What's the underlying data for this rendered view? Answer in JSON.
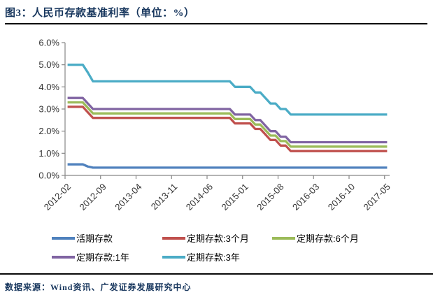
{
  "header": {
    "title": "图3：人民币存款基准利率（单位：%）"
  },
  "footer": {
    "source": "数据来源：Wind资讯、广发证券发展研究中心"
  },
  "chart_data": {
    "type": "line",
    "title": "人民币存款基准利率（单位：%）",
    "xlabel": "",
    "ylabel": "",
    "ylim": [
      0,
      6
    ],
    "grid": false,
    "legend_position": "bottom",
    "axis_color": "#878787",
    "tick_label_color": "#333333",
    "y_ticks": [
      "0.0%",
      "1.0%",
      "2.0%",
      "3.0%",
      "4.0%",
      "5.0%",
      "6.0%"
    ],
    "x_tick_labels": [
      "2012-02",
      "2012-09",
      "2013-04",
      "2013-11",
      "2014-06",
      "2015-01",
      "2015-08",
      "2016-03",
      "2016-10",
      "2017-05"
    ],
    "x_categories": [
      "2012-02",
      "2012-03",
      "2012-04",
      "2012-05",
      "2012-06",
      "2012-07",
      "2012-08",
      "2012-09",
      "2012-10",
      "2012-11",
      "2012-12",
      "2013-01",
      "2013-02",
      "2013-03",
      "2013-04",
      "2013-05",
      "2013-06",
      "2013-07",
      "2013-08",
      "2013-09",
      "2013-10",
      "2013-11",
      "2013-12",
      "2014-01",
      "2014-02",
      "2014-03",
      "2014-04",
      "2014-05",
      "2014-06",
      "2014-07",
      "2014-08",
      "2014-09",
      "2014-10",
      "2014-11",
      "2014-12",
      "2015-01",
      "2015-02",
      "2015-03",
      "2015-04",
      "2015-05",
      "2015-06",
      "2015-07",
      "2015-08",
      "2015-09",
      "2015-10",
      "2015-11",
      "2015-12",
      "2016-01",
      "2016-02",
      "2016-03",
      "2016-04",
      "2016-05",
      "2016-06",
      "2016-07",
      "2016-08",
      "2016-09",
      "2016-10",
      "2016-11",
      "2016-12",
      "2017-01",
      "2017-02",
      "2017-03",
      "2017-04",
      "2017-05"
    ],
    "series": [
      {
        "name": "活期存款",
        "color": "#4F81BD",
        "values": [
          0.5,
          0.5,
          0.5,
          0.5,
          0.4,
          0.35,
          0.35,
          0.35,
          0.35,
          0.35,
          0.35,
          0.35,
          0.35,
          0.35,
          0.35,
          0.35,
          0.35,
          0.35,
          0.35,
          0.35,
          0.35,
          0.35,
          0.35,
          0.35,
          0.35,
          0.35,
          0.35,
          0.35,
          0.35,
          0.35,
          0.35,
          0.35,
          0.35,
          0.35,
          0.35,
          0.35,
          0.35,
          0.35,
          0.35,
          0.35,
          0.35,
          0.35,
          0.35,
          0.35,
          0.35,
          0.35,
          0.35,
          0.35,
          0.35,
          0.35,
          0.35,
          0.35,
          0.35,
          0.35,
          0.35,
          0.35,
          0.35,
          0.35,
          0.35,
          0.35,
          0.35,
          0.35,
          0.35,
          0.35
        ]
      },
      {
        "name": "定期存款:3个月",
        "color": "#C0504D",
        "values": [
          3.1,
          3.1,
          3.1,
          3.1,
          2.85,
          2.6,
          2.6,
          2.6,
          2.6,
          2.6,
          2.6,
          2.6,
          2.6,
          2.6,
          2.6,
          2.6,
          2.6,
          2.6,
          2.6,
          2.6,
          2.6,
          2.6,
          2.6,
          2.6,
          2.6,
          2.6,
          2.6,
          2.6,
          2.6,
          2.6,
          2.6,
          2.6,
          2.6,
          2.35,
          2.35,
          2.35,
          2.35,
          2.1,
          2.1,
          1.85,
          1.6,
          1.6,
          1.35,
          1.35,
          1.1,
          1.1,
          1.1,
          1.1,
          1.1,
          1.1,
          1.1,
          1.1,
          1.1,
          1.1,
          1.1,
          1.1,
          1.1,
          1.1,
          1.1,
          1.1,
          1.1,
          1.1,
          1.1,
          1.1
        ]
      },
      {
        "name": "定期存款:6个月",
        "color": "#9BBB59",
        "values": [
          3.3,
          3.3,
          3.3,
          3.3,
          3.05,
          2.8,
          2.8,
          2.8,
          2.8,
          2.8,
          2.8,
          2.8,
          2.8,
          2.8,
          2.8,
          2.8,
          2.8,
          2.8,
          2.8,
          2.8,
          2.8,
          2.8,
          2.8,
          2.8,
          2.8,
          2.8,
          2.8,
          2.8,
          2.8,
          2.8,
          2.8,
          2.8,
          2.8,
          2.55,
          2.55,
          2.55,
          2.55,
          2.3,
          2.3,
          2.05,
          1.8,
          1.8,
          1.55,
          1.55,
          1.3,
          1.3,
          1.3,
          1.3,
          1.3,
          1.3,
          1.3,
          1.3,
          1.3,
          1.3,
          1.3,
          1.3,
          1.3,
          1.3,
          1.3,
          1.3,
          1.3,
          1.3,
          1.3,
          1.3
        ]
      },
      {
        "name": "定期存款:1年",
        "color": "#8064A2",
        "values": [
          3.5,
          3.5,
          3.5,
          3.5,
          3.25,
          3.0,
          3.0,
          3.0,
          3.0,
          3.0,
          3.0,
          3.0,
          3.0,
          3.0,
          3.0,
          3.0,
          3.0,
          3.0,
          3.0,
          3.0,
          3.0,
          3.0,
          3.0,
          3.0,
          3.0,
          3.0,
          3.0,
          3.0,
          3.0,
          3.0,
          3.0,
          3.0,
          3.0,
          2.75,
          2.75,
          2.75,
          2.75,
          2.5,
          2.5,
          2.25,
          2.0,
          2.0,
          1.75,
          1.75,
          1.5,
          1.5,
          1.5,
          1.5,
          1.5,
          1.5,
          1.5,
          1.5,
          1.5,
          1.5,
          1.5,
          1.5,
          1.5,
          1.5,
          1.5,
          1.5,
          1.5,
          1.5,
          1.5,
          1.5
        ]
      },
      {
        "name": "定期存款:3年",
        "color": "#4BACC6",
        "values": [
          5.0,
          5.0,
          5.0,
          5.0,
          4.65,
          4.25,
          4.25,
          4.25,
          4.25,
          4.25,
          4.25,
          4.25,
          4.25,
          4.25,
          4.25,
          4.25,
          4.25,
          4.25,
          4.25,
          4.25,
          4.25,
          4.25,
          4.25,
          4.25,
          4.25,
          4.25,
          4.25,
          4.25,
          4.25,
          4.25,
          4.25,
          4.25,
          4.25,
          4.0,
          4.0,
          4.0,
          4.0,
          3.75,
          3.75,
          3.5,
          3.25,
          3.25,
          3.0,
          3.0,
          2.75,
          2.75,
          2.75,
          2.75,
          2.75,
          2.75,
          2.75,
          2.75,
          2.75,
          2.75,
          2.75,
          2.75,
          2.75,
          2.75,
          2.75,
          2.75,
          2.75,
          2.75,
          2.75,
          2.75
        ]
      }
    ]
  }
}
